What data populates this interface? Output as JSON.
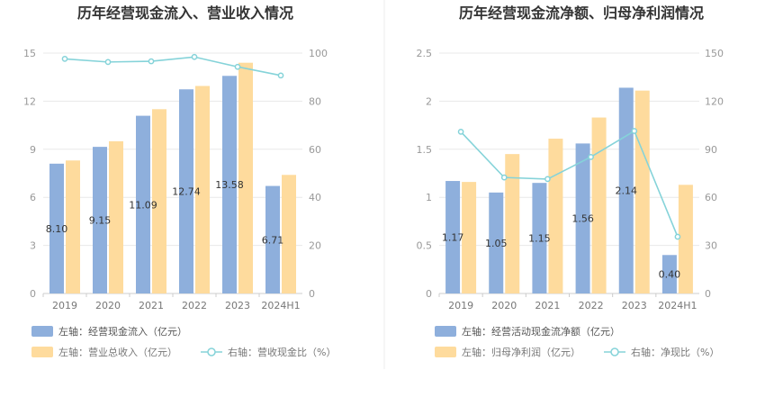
{
  "colors": {
    "inflow_bar": "#8eafdc",
    "revenue_bar": "#fedb9d",
    "ratio_line": "#85d3d9",
    "grid": "#e8e8e8",
    "axis": "#cccccc"
  },
  "chart_data": [
    {
      "type": "bar",
      "title": "历年经营现金流入、营业收入情况",
      "categories": [
        "2019",
        "2020",
        "2021",
        "2022",
        "2023",
        "2024H1"
      ],
      "left_axis": {
        "ylim": [
          0,
          15
        ],
        "ticks": [
          "0",
          "3",
          "6",
          "9",
          "12",
          "15"
        ]
      },
      "right_axis": {
        "ylim": [
          0,
          100
        ],
        "ticks": [
          "0",
          "20",
          "40",
          "60",
          "80",
          "100"
        ]
      },
      "series": [
        {
          "name": "左轴：经营现金流入（亿元）",
          "axis": "left",
          "type": "bar",
          "values": [
            8.1,
            9.15,
            11.09,
            12.74,
            13.58,
            6.71
          ],
          "labels": [
            "8.10",
            "9.15",
            "11.09",
            "12.74",
            "13.58",
            "6.71"
          ]
        },
        {
          "name": "左轴：营业总收入（亿元）",
          "axis": "left",
          "type": "bar",
          "values": [
            8.3,
            9.5,
            11.5,
            12.95,
            14.4,
            7.4
          ]
        },
        {
          "name": "右轴：营收现金比（%）",
          "axis": "right",
          "type": "line",
          "values": [
            97.6,
            96.3,
            96.6,
            98.4,
            94.3,
            90.7
          ]
        }
      ],
      "grid": true,
      "legend": "bottom-left"
    },
    {
      "type": "bar",
      "title": "历年经营现金流净额、归母净利润情况",
      "categories": [
        "2019",
        "2020",
        "2021",
        "2022",
        "2023",
        "2024H1"
      ],
      "left_axis": {
        "ylim": [
          0,
          2.5
        ],
        "ticks": [
          "0",
          "0.5",
          "1",
          "1.5",
          "2",
          "2.5"
        ]
      },
      "right_axis": {
        "ylim": [
          0,
          150
        ],
        "ticks": [
          "0",
          "30",
          "60",
          "90",
          "120",
          "150"
        ]
      },
      "series": [
        {
          "name": "左轴：经营活动现金流净额（亿元）",
          "axis": "left",
          "type": "bar",
          "values": [
            1.17,
            1.05,
            1.15,
            1.56,
            2.14,
            0.4
          ],
          "labels": [
            "1.17",
            "1.05",
            "1.15",
            "1.56",
            "2.14",
            "0.40"
          ]
        },
        {
          "name": "左轴：归母净利润（亿元）",
          "axis": "left",
          "type": "bar",
          "values": [
            1.16,
            1.45,
            1.61,
            1.83,
            2.11,
            1.13
          ]
        },
        {
          "name": "右轴：净现比（%）",
          "axis": "right",
          "type": "line",
          "values": [
            100.9,
            72.4,
            71.4,
            85.2,
            101.4,
            35.4
          ]
        }
      ],
      "grid": true,
      "legend": "bottom-left"
    }
  ]
}
